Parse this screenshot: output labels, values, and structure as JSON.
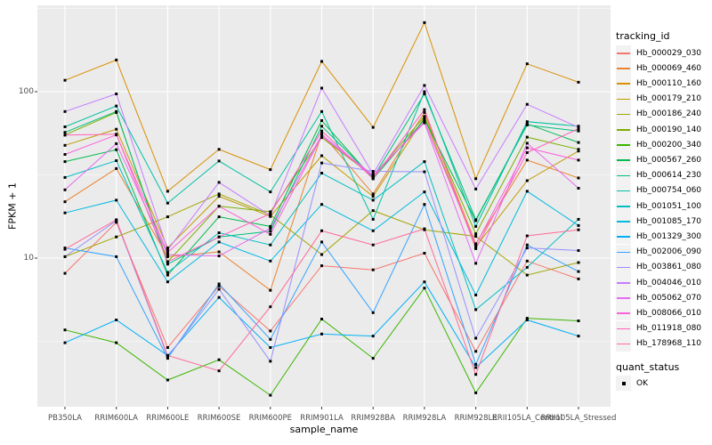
{
  "figure": {
    "y_axis": {
      "title": "FPKM + 1",
      "tick_labels": [
        "100",
        "10"
      ],
      "tick_values": [
        100,
        10
      ]
    },
    "x_axis": {
      "title": "sample_name"
    },
    "legend": {
      "tracking_title": "tracking_id",
      "quant_title": "quant_status",
      "quant_items": [
        {
          "label": "OK",
          "marker": "black-square"
        }
      ]
    },
    "colors": {
      "panel_bg": "#EBEBEB",
      "grid": "#FFFFFF",
      "tick_text": "#4D4D4D",
      "text": "#000000",
      "marker": "#000000",
      "legend_key_bg": "#F2F2F2"
    }
  },
  "chart_data": {
    "type": "line",
    "title": "",
    "xlabel": "sample_name",
    "ylabel": "FPKM + 1",
    "y_scale": "log10",
    "ylim": [
      1.3,
      320
    ],
    "y_major_ticks": [
      10,
      100
    ],
    "y_minor_ticks": [
      3.162,
      31.62,
      316.2
    ],
    "grid": true,
    "legend_position": "right",
    "point_marker": "black-square",
    "quant_status": {
      "label": "OK"
    },
    "categories": [
      "PB350LA",
      "RRIM600LA",
      "RRIM600LE",
      "RRIM600SE",
      "RRIM600PE",
      "RRIM901LA",
      "RRIM928BA",
      "RRIM928LA",
      "RRIM928LE",
      "RRII105LA_Control",
      "RRII105LA_Stressed"
    ],
    "series": [
      {
        "name": "Hb_000029_030",
        "color": "#F8766D",
        "values": [
          8.1,
          16.4,
          2.9,
          6.8,
          3.65,
          9.0,
          8.5,
          10.7,
          2.75,
          9.6,
          7.5
        ]
      },
      {
        "name": "Hb_000069_460",
        "color": "#EA8331",
        "values": [
          21.8,
          34.5,
          10.2,
          10.9,
          6.4,
          56,
          24.3,
          75,
          12.2,
          38.8,
          30.3
        ]
      },
      {
        "name": "Hb_000110_160",
        "color": "#D89000",
        "values": [
          117,
          155,
          25.2,
          45,
          34,
          152,
          61,
          260,
          30,
          147,
          114
        ]
      },
      {
        "name": "Hb_000179_210",
        "color": "#C09B00",
        "values": [
          47.6,
          59.5,
          11.5,
          23.5,
          17.8,
          41.2,
          23.5,
          70,
          11.7,
          29.2,
          44
        ]
      },
      {
        "name": "Hb_000186_240",
        "color": "#A3A500",
        "values": [
          10.2,
          13.4,
          17.7,
          24.3,
          18.2,
          10.5,
          19.3,
          14.8,
          13.5,
          7.9,
          9.4
        ]
      },
      {
        "name": "Hb_000190_140",
        "color": "#7CAE00",
        "values": [
          55,
          75,
          9.5,
          20.5,
          19,
          53,
          31,
          71,
          14,
          53.3,
          45
        ]
      },
      {
        "name": "Hb_000200_340",
        "color": "#39B600",
        "values": [
          3.7,
          3.1,
          1.85,
          2.45,
          1.5,
          4.3,
          2.5,
          6.6,
          1.55,
          4.35,
          4.2
        ]
      },
      {
        "name": "Hb_000567_260",
        "color": "#00BB4E",
        "values": [
          38,
          44.8,
          7.9,
          17.7,
          15.5,
          67,
          30,
          68,
          16.8,
          64,
          49.5
        ]
      },
      {
        "name": "Hb_000614_230",
        "color": "#00BF7D",
        "values": [
          57,
          76,
          9.2,
          13.4,
          14.5,
          62,
          30.5,
          97,
          17,
          63,
          58
        ]
      },
      {
        "name": "Hb_000754_060",
        "color": "#00C1A3",
        "values": [
          61.5,
          82,
          21.4,
          38.3,
          25,
          76,
          17.1,
          100,
          15.5,
          66,
          62
        ]
      },
      {
        "name": "Hb_001051_100",
        "color": "#00BFC4",
        "values": [
          30.5,
          38.5,
          8.2,
          14.2,
          12.0,
          32.4,
          22.3,
          38,
          4.9,
          8.8,
          17.1
        ]
      },
      {
        "name": "Hb_001085_170",
        "color": "#00BAE0",
        "values": [
          18.7,
          22.3,
          7.2,
          12.5,
          9.6,
          21,
          14.6,
          25,
          6.0,
          25.2,
          15.7
        ]
      },
      {
        "name": "Hb_001329_300",
        "color": "#00B0F6",
        "values": [
          3.1,
          4.25,
          2.6,
          5.8,
          2.9,
          3.5,
          3.4,
          7.2,
          2.2,
          4.25,
          3.4
        ]
      },
      {
        "name": "Hb_002006_090",
        "color": "#35A2FF",
        "values": [
          11.5,
          10.2,
          2.5,
          7.0,
          3.25,
          12.5,
          4.7,
          21,
          2.3,
          12,
          8.3
        ]
      },
      {
        "name": "Hb_003861_080",
        "color": "#9590FF",
        "values": [
          10.2,
          16.8,
          2.55,
          6.5,
          2.4,
          37.3,
          33.2,
          33,
          3.3,
          11.5,
          11.1
        ]
      },
      {
        "name": "Hb_004046_010",
        "color": "#C77CFF",
        "values": [
          76,
          97,
          11.2,
          28.5,
          18,
          105,
          32,
          109,
          26,
          84,
          61
        ]
      },
      {
        "name": "Hb_005062_070",
        "color": "#E76BF3",
        "values": [
          25.7,
          48.7,
          10.5,
          10.3,
          15.1,
          55,
          31.5,
          65,
          9.3,
          49,
          26.3
        ]
      },
      {
        "name": "Hb_008066_010",
        "color": "#FA62DB",
        "values": [
          42,
          55,
          10.8,
          20.5,
          13.9,
          54,
          31,
          66,
          12,
          46,
          38.8
        ]
      },
      {
        "name": "Hb_011918_080",
        "color": "#FF62BC",
        "values": [
          54.8,
          55.5,
          9.5,
          13.4,
          18.5,
          58,
          30,
          78,
          11.4,
          43,
          60
        ]
      },
      {
        "name": "Hb_178968_110",
        "color": "#FF6A98",
        "values": [
          11.3,
          17,
          2.6,
          2.1,
          5.1,
          14.6,
          12.0,
          15,
          2.0,
          13.6,
          14.8
        ]
      }
    ]
  }
}
